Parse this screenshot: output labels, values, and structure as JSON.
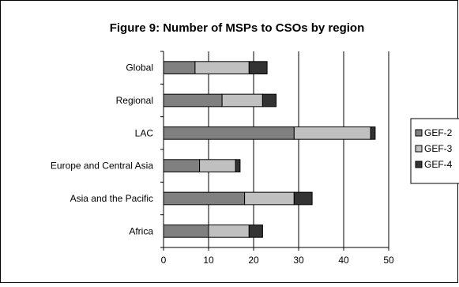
{
  "chart_data": {
    "type": "bar",
    "orientation": "horizontal",
    "stacked": true,
    "title": "Figure 9: Number of MSPs to CSOs by region",
    "categories": [
      "Global",
      "Regional",
      "LAC",
      "Europe and Central Asia",
      "Asia and the Pacific",
      "Africa"
    ],
    "series": [
      {
        "name": "GEF-2",
        "values": [
          7,
          13,
          29,
          8,
          18,
          10
        ]
      },
      {
        "name": "GEF-3",
        "values": [
          12,
          9,
          17,
          8,
          11,
          9
        ]
      },
      {
        "name": "GEF-4",
        "values": [
          4,
          3,
          1,
          1,
          4,
          3
        ]
      }
    ],
    "xlim": [
      0,
      50
    ],
    "xticks": [
      "0",
      "10",
      "20",
      "30",
      "40",
      "50"
    ],
    "grid": "vertical lines",
    "legend_position": "right",
    "colors": {
      "GEF-2": "#808080",
      "GEF-3": "#c0c0c0",
      "GEF-4": "#333333",
      "gridline": "#000000",
      "frame": "#000000"
    }
  }
}
